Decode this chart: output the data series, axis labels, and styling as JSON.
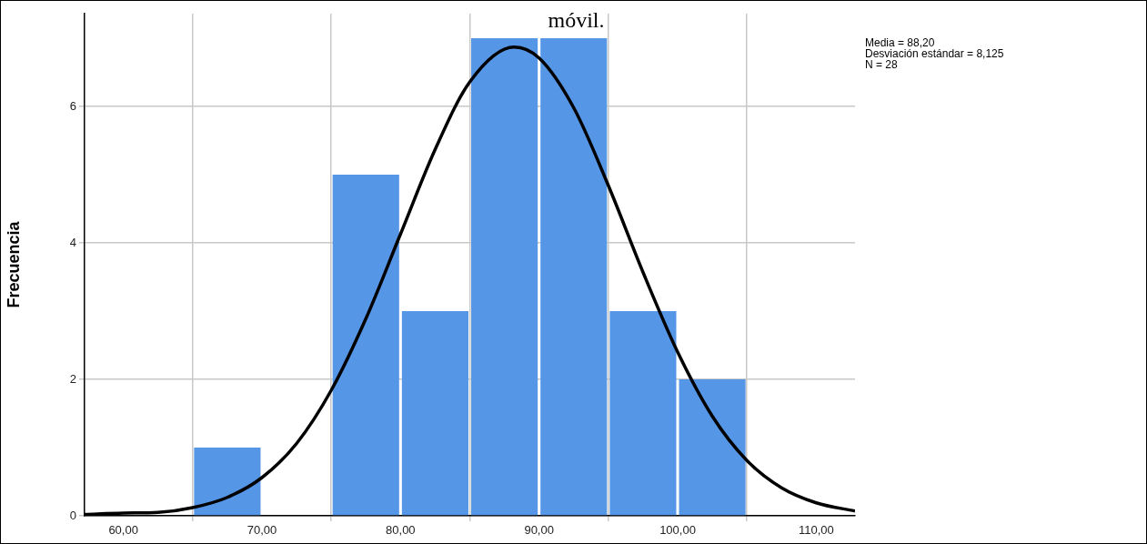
{
  "chart_data": {
    "type": "histogram",
    "title": "móvil.",
    "ylabel": "Frecuencia",
    "annotations": [
      "Media = 88,20",
      "Desviación estándar = 8,125",
      "N = 28"
    ],
    "bins": [
      65,
      70,
      75,
      80,
      85,
      90,
      95,
      100,
      105
    ],
    "values": [
      1,
      0,
      5,
      3,
      7,
      7,
      3,
      2
    ],
    "color": "#5596e6",
    "series": [
      {
        "type": "line",
        "color": "#000000",
        "x": [
          57.2,
          60,
          62.5,
          65,
          67.5,
          70,
          72.5,
          75,
          77.5,
          80,
          82.5,
          85,
          88.2,
          90,
          92.5,
          95,
          97.5,
          100,
          102.5,
          105,
          107.5,
          110,
          112.8
        ],
        "values": [
          0.02,
          0.04,
          0.05,
          0.12,
          0.27,
          0.56,
          1.06,
          1.84,
          2.89,
          4.13,
          5.37,
          6.36,
          6.87,
          6.71,
          5.98,
          4.84,
          3.57,
          2.4,
          1.46,
          0.81,
          0.41,
          0.19,
          0.07
        ]
      }
    ],
    "xlim": [
      57.2,
      112.8
    ],
    "ylim": [
      0,
      7.36
    ],
    "xticks": [
      {
        "value": 60,
        "label": "60,00"
      },
      {
        "value": 70,
        "label": "70,00"
      },
      {
        "value": 80,
        "label": "80,00"
      },
      {
        "value": 90,
        "label": "90,00"
      },
      {
        "value": 100,
        "label": "100,00"
      },
      {
        "value": 110,
        "label": "110,00"
      }
    ],
    "yticks": [
      0,
      2,
      4,
      6
    ],
    "grid": true,
    "legend": false
  }
}
